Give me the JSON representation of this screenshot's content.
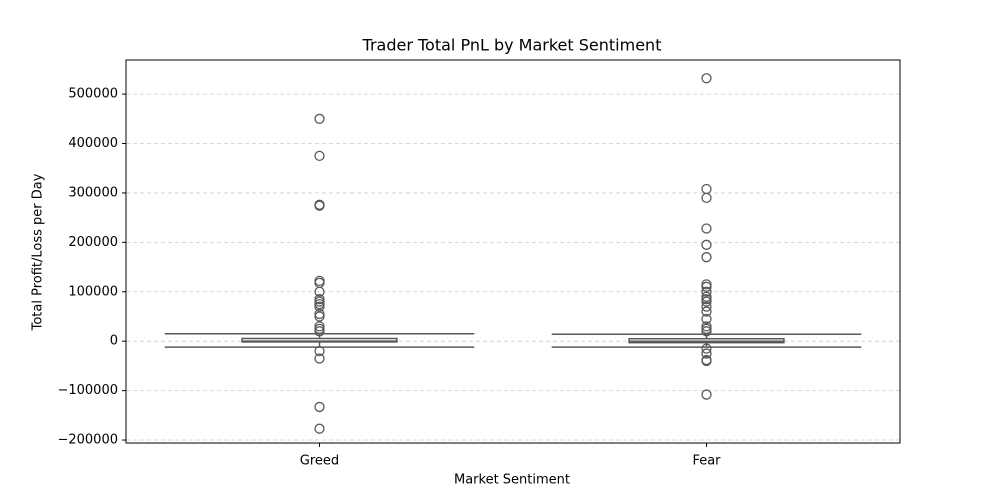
{
  "chart_data": {
    "type": "box",
    "title": "Trader Total PnL by Market Sentiment",
    "xlabel": "Market Sentiment",
    "ylabel": "Total Profit/Loss per Day",
    "categories": [
      "Greed",
      "Fear"
    ],
    "boxes": [
      {
        "whislo": -12000,
        "q1": -1500,
        "med": 200,
        "q3": 5500,
        "whishi": 15000,
        "fliers": [
          450000,
          375000,
          276000,
          274000,
          122000,
          118000,
          100000,
          85000,
          80000,
          75000,
          70000,
          55000,
          50000,
          30000,
          25000,
          20000,
          -20000,
          -35000,
          -133000,
          -177000
        ]
      },
      {
        "whislo": -12000,
        "q1": -3000,
        "med": 0,
        "q3": 5000,
        "whishi": 14000,
        "fliers": [
          532000,
          308000,
          290000,
          228000,
          195000,
          170000,
          115000,
          110000,
          100000,
          90000,
          85000,
          80000,
          70000,
          60000,
          45000,
          30000,
          25000,
          20000,
          -15000,
          -25000,
          -38000,
          -40000,
          -108000
        ]
      }
    ],
    "color": "#ffffff",
    "edge_color": "#595959",
    "ylim": [
      -206000,
      569000
    ],
    "yticks": [
      {
        "value": -200000,
        "label": "−200000"
      },
      {
        "value": -100000,
        "label": "−100000"
      },
      0,
      100000,
      200000,
      300000,
      400000,
      500000
    ],
    "grid": true
  }
}
